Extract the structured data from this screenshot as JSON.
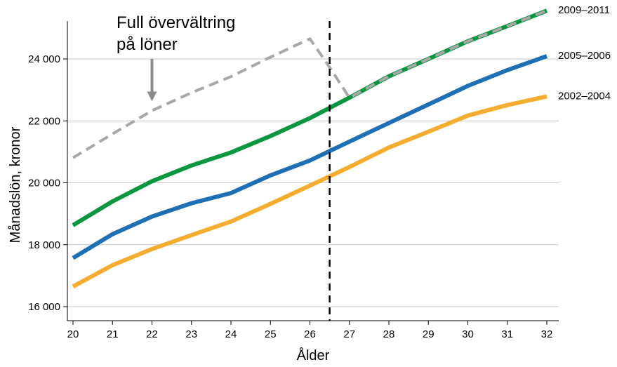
{
  "chart_data": {
    "type": "line",
    "xlabel": "Ålder",
    "ylabel": "Månadslön, kronor",
    "xlim": [
      20,
      32
    ],
    "ylim": [
      15600,
      25600
    ],
    "xticks": [
      20,
      21,
      22,
      23,
      24,
      25,
      26,
      27,
      28,
      29,
      30,
      31,
      32
    ],
    "yticks": [
      16000,
      18000,
      20000,
      22000,
      24000
    ],
    "ytick_labels": [
      "16 000",
      "18 000",
      "20 000",
      "22 000",
      "24 000"
    ],
    "grid": "horizontal",
    "colors": {
      "green": "#0a9640",
      "blue": "#1f6fb4",
      "orange": "#f5ad2f",
      "gray": "#a8a8a8"
    },
    "series": [
      {
        "name": "2009–2011",
        "color": "#0a9640",
        "x": [
          20,
          21,
          22,
          23,
          24,
          25,
          26,
          27,
          28,
          29,
          30,
          31,
          32
        ],
        "values": [
          18630,
          19400,
          20050,
          20560,
          20980,
          21510,
          22090,
          22750,
          23440,
          24000,
          24570,
          25060,
          25560
        ]
      },
      {
        "name": "2005–2006",
        "color": "#1f6fb4",
        "x": [
          20,
          21,
          22,
          23,
          24,
          25,
          26,
          27,
          28,
          29,
          30,
          31,
          32
        ],
        "values": [
          17570,
          18340,
          18910,
          19340,
          19670,
          20240,
          20720,
          21330,
          21930,
          22530,
          23130,
          23640,
          24090
        ]
      },
      {
        "name": "2002–2004",
        "color": "#f5ad2f",
        "x": [
          20,
          21,
          22,
          23,
          24,
          25,
          26,
          27,
          28,
          29,
          30,
          31,
          32
        ],
        "values": [
          16650,
          17340,
          17860,
          18310,
          18750,
          19320,
          19910,
          20510,
          21140,
          21650,
          22170,
          22510,
          22790
        ]
      }
    ],
    "annotation_line": {
      "style": "dashed",
      "color": "#a8a8a8",
      "x": [
        20,
        21,
        22,
        23,
        24,
        25,
        26,
        26.5,
        27,
        28,
        29,
        30,
        31,
        32
      ],
      "values": [
        20810,
        21580,
        22330,
        22910,
        23430,
        24060,
        24650,
        23730,
        22750,
        23440,
        24000,
        24570,
        25060,
        25560
      ]
    },
    "vertical_marker": {
      "x": 26.5,
      "style": "dashed",
      "color": "#000000"
    },
    "annotation": {
      "text_lines": [
        "Full övervältring",
        "på löner"
      ],
      "arrow_x": 22,
      "arrow_from_y": 24000,
      "arrow_to_y": 22630
    }
  }
}
